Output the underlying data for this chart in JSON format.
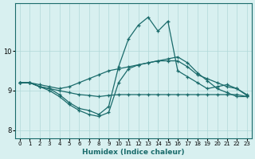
{
  "xlabel": "Humidex (Indice chaleur)",
  "bg_color": "#d8f0f0",
  "line_color": "#1a6b6b",
  "grid_color": "#b0d8d8",
  "xlim": [
    -0.5,
    23.5
  ],
  "ylim": [
    7.8,
    11.2
  ],
  "yticks": [
    8,
    9,
    10
  ],
  "xticks": [
    0,
    1,
    2,
    3,
    4,
    5,
    6,
    7,
    8,
    9,
    10,
    11,
    12,
    13,
    14,
    15,
    16,
    17,
    18,
    19,
    20,
    21,
    22,
    23
  ],
  "series": [
    {
      "x": [
        0,
        1,
        2,
        3,
        4,
        5,
        6,
        7,
        8,
        9,
        10,
        11,
        12,
        13,
        14,
        15,
        16,
        17,
        18,
        19,
        20,
        21,
        22,
        23
      ],
      "y": [
        9.2,
        9.2,
        9.1,
        9.05,
        8.9,
        8.7,
        8.55,
        8.5,
        8.4,
        8.6,
        9.6,
        10.3,
        10.65,
        10.85,
        10.5,
        10.75,
        9.5,
        9.35,
        9.2,
        9.05,
        9.1,
        9.15,
        9.05,
        8.9
      ]
    },
    {
      "x": [
        0,
        1,
        2,
        3,
        4,
        5,
        6,
        7,
        8,
        9,
        10,
        11,
        12,
        13,
        14,
        15,
        16,
        17,
        18,
        19,
        20,
        21,
        22,
        23
      ],
      "y": [
        9.2,
        9.2,
        9.1,
        9.0,
        8.85,
        8.65,
        8.5,
        8.4,
        8.35,
        8.45,
        9.2,
        9.55,
        9.65,
        9.7,
        9.75,
        9.8,
        9.85,
        9.7,
        9.45,
        9.25,
        9.05,
        8.95,
        8.85,
        8.85
      ]
    },
    {
      "x": [
        0,
        1,
        2,
        3,
        4,
        5,
        6,
        7,
        8,
        9,
        10,
        11,
        12,
        13,
        14,
        15,
        16,
        17,
        18,
        19,
        20,
        21,
        22,
        23
      ],
      "y": [
        9.2,
        9.2,
        9.1,
        9.05,
        9.0,
        8.95,
        8.9,
        8.88,
        8.85,
        8.88,
        8.9,
        8.9,
        8.9,
        8.9,
        8.9,
        8.9,
        8.9,
        8.9,
        8.9,
        8.9,
        8.9,
        8.9,
        8.9,
        8.85
      ]
    },
    {
      "x": [
        0,
        1,
        2,
        3,
        4,
        5,
        6,
        7,
        8,
        9,
        10,
        11,
        12,
        13,
        14,
        15,
        16,
        17,
        18,
        19,
        20,
        21,
        22,
        23
      ],
      "y": [
        9.2,
        9.2,
        9.15,
        9.1,
        9.05,
        9.1,
        9.2,
        9.3,
        9.4,
        9.5,
        9.55,
        9.6,
        9.65,
        9.7,
        9.75,
        9.75,
        9.75,
        9.6,
        9.4,
        9.3,
        9.2,
        9.1,
        9.05,
        8.88
      ]
    }
  ]
}
